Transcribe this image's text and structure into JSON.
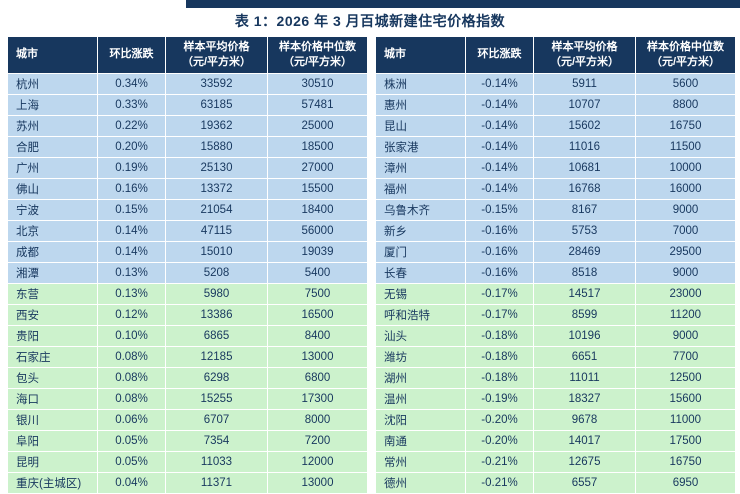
{
  "page": {
    "title": "表 1：2026 年 3 月百城新建住宅价格指数"
  },
  "colors": {
    "top_bar": "#17375E",
    "header_bg": "#17375E",
    "text_color": "#17375E",
    "row_blue": "#BDD7EE",
    "row_green": "#CCF2CC"
  },
  "columns": [
    {
      "label": "城市",
      "sub": ""
    },
    {
      "label": "环比涨跌",
      "sub": ""
    },
    {
      "label": "样本平均价格",
      "sub": "（元/平方米）"
    },
    {
      "label": "样本价格中位数",
      "sub": "（元/平方米）"
    }
  ],
  "left_table": {
    "rows": [
      {
        "city": "杭州",
        "change": "0.34%",
        "avg": "33592",
        "median": "30510",
        "tone": "blue"
      },
      {
        "city": "上海",
        "change": "0.33%",
        "avg": "63185",
        "median": "57481",
        "tone": "blue"
      },
      {
        "city": "苏州",
        "change": "0.22%",
        "avg": "19362",
        "median": "25000",
        "tone": "blue"
      },
      {
        "city": "合肥",
        "change": "0.20%",
        "avg": "15880",
        "median": "18500",
        "tone": "blue"
      },
      {
        "city": "广州",
        "change": "0.19%",
        "avg": "25130",
        "median": "27000",
        "tone": "blue"
      },
      {
        "city": "佛山",
        "change": "0.16%",
        "avg": "13372",
        "median": "15500",
        "tone": "blue"
      },
      {
        "city": "宁波",
        "change": "0.15%",
        "avg": "21054",
        "median": "18400",
        "tone": "blue"
      },
      {
        "city": "北京",
        "change": "0.14%",
        "avg": "47115",
        "median": "56000",
        "tone": "blue"
      },
      {
        "city": "成都",
        "change": "0.14%",
        "avg": "15010",
        "median": "19039",
        "tone": "blue"
      },
      {
        "city": "湘潭",
        "change": "0.13%",
        "avg": "5208",
        "median": "5400",
        "tone": "blue"
      },
      {
        "city": "东营",
        "change": "0.13%",
        "avg": "5980",
        "median": "7500",
        "tone": "green"
      },
      {
        "city": "西安",
        "change": "0.12%",
        "avg": "13386",
        "median": "16500",
        "tone": "green"
      },
      {
        "city": "贵阳",
        "change": "0.10%",
        "avg": "6865",
        "median": "8400",
        "tone": "green"
      },
      {
        "city": "石家庄",
        "change": "0.08%",
        "avg": "12185",
        "median": "13000",
        "tone": "green"
      },
      {
        "city": "包头",
        "change": "0.08%",
        "avg": "6298",
        "median": "6800",
        "tone": "green"
      },
      {
        "city": "海口",
        "change": "0.08%",
        "avg": "15255",
        "median": "17300",
        "tone": "green"
      },
      {
        "city": "银川",
        "change": "0.06%",
        "avg": "6707",
        "median": "8000",
        "tone": "green"
      },
      {
        "city": "阜阳",
        "change": "0.05%",
        "avg": "7354",
        "median": "7200",
        "tone": "green"
      },
      {
        "city": "昆明",
        "change": "0.05%",
        "avg": "11033",
        "median": "12000",
        "tone": "green"
      },
      {
        "city": "重庆(主城区)",
        "change": "0.04%",
        "avg": "11371",
        "median": "13000",
        "tone": "green"
      }
    ]
  },
  "right_table": {
    "rows": [
      {
        "city": "株洲",
        "change": "-0.14%",
        "avg": "5911",
        "median": "5600",
        "tone": "blue"
      },
      {
        "city": "惠州",
        "change": "-0.14%",
        "avg": "10707",
        "median": "8800",
        "tone": "blue"
      },
      {
        "city": "昆山",
        "change": "-0.14%",
        "avg": "15602",
        "median": "16750",
        "tone": "blue"
      },
      {
        "city": "张家港",
        "change": "-0.14%",
        "avg": "11016",
        "median": "11500",
        "tone": "blue"
      },
      {
        "city": "漳州",
        "change": "-0.14%",
        "avg": "10681",
        "median": "10000",
        "tone": "blue"
      },
      {
        "city": "福州",
        "change": "-0.14%",
        "avg": "16768",
        "median": "16000",
        "tone": "blue"
      },
      {
        "city": "乌鲁木齐",
        "change": "-0.15%",
        "avg": "8167",
        "median": "9000",
        "tone": "blue"
      },
      {
        "city": "新乡",
        "change": "-0.16%",
        "avg": "5753",
        "median": "7000",
        "tone": "blue"
      },
      {
        "city": "厦门",
        "change": "-0.16%",
        "avg": "28469",
        "median": "29500",
        "tone": "blue"
      },
      {
        "city": "长春",
        "change": "-0.16%",
        "avg": "8518",
        "median": "9000",
        "tone": "blue"
      },
      {
        "city": "无锡",
        "change": "-0.17%",
        "avg": "14517",
        "median": "23000",
        "tone": "green"
      },
      {
        "city": "呼和浩特",
        "change": "-0.17%",
        "avg": "8599",
        "median": "11200",
        "tone": "green"
      },
      {
        "city": "汕头",
        "change": "-0.18%",
        "avg": "10196",
        "median": "9000",
        "tone": "green"
      },
      {
        "city": "潍坊",
        "change": "-0.18%",
        "avg": "6651",
        "median": "7700",
        "tone": "green"
      },
      {
        "city": "湖州",
        "change": "-0.18%",
        "avg": "11011",
        "median": "12500",
        "tone": "green"
      },
      {
        "city": "温州",
        "change": "-0.19%",
        "avg": "18327",
        "median": "15600",
        "tone": "green"
      },
      {
        "city": "沈阳",
        "change": "-0.20%",
        "avg": "9678",
        "median": "11000",
        "tone": "green"
      },
      {
        "city": "南通",
        "change": "-0.20%",
        "avg": "14017",
        "median": "17500",
        "tone": "green"
      },
      {
        "city": "常州",
        "change": "-0.21%",
        "avg": "12675",
        "median": "16750",
        "tone": "green"
      },
      {
        "city": "德州",
        "change": "-0.21%",
        "avg": "6557",
        "median": "6950",
        "tone": "green"
      }
    ]
  }
}
